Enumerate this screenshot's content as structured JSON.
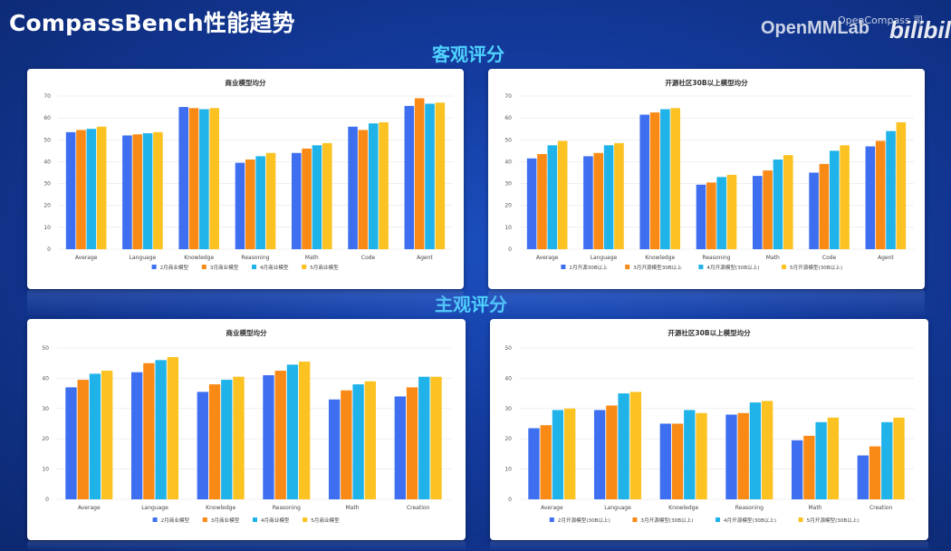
{
  "header": {
    "title": "CompassBench性能趋势",
    "watermark": "OpenMMLab",
    "watermark_small": "OpenCompass 司",
    "bilibili": "bilibili"
  },
  "sections": {
    "objective": "客观评分",
    "subjective": "主观评分"
  },
  "colors": [
    "#3d6ff0",
    "#f98a16",
    "#1fb3ea",
    "#fbc221"
  ],
  "chart_data": [
    {
      "type": "bar",
      "title": "商业模型均分",
      "categories": [
        "Average",
        "Language",
        "Knowledge",
        "Reasoning",
        "Math",
        "Code",
        "Agent"
      ],
      "ylim": [
        0,
        70
      ],
      "yticks": [
        0,
        10,
        20,
        30,
        40,
        50,
        60,
        70
      ],
      "grid": true,
      "legend_position": "bottom",
      "series": [
        {
          "name": "2月商业模型",
          "values": [
            53.5,
            52,
            65,
            39.5,
            44,
            56,
            65.5
          ]
        },
        {
          "name": "3月商业模型",
          "values": [
            54.5,
            52.5,
            64.5,
            41,
            46,
            54.5,
            69
          ]
        },
        {
          "name": "4月商业模型",
          "values": [
            55,
            53,
            64,
            42.5,
            47.5,
            57.5,
            66.5
          ]
        },
        {
          "name": "5月商业模型",
          "values": [
            56,
            53.5,
            64.5,
            44,
            48.5,
            58,
            67
          ]
        }
      ]
    },
    {
      "type": "bar",
      "title": "开源社区30B以上模型均分",
      "categories": [
        "Average",
        "Language",
        "Knowledge",
        "Reasoning",
        "Math",
        "Code",
        "Agent"
      ],
      "ylim": [
        0,
        70
      ],
      "yticks": [
        0,
        10,
        20,
        30,
        40,
        50,
        60,
        70
      ],
      "grid": true,
      "legend_position": "bottom",
      "series": [
        {
          "name": "2月开源30B以上",
          "values": [
            41.5,
            42.5,
            61.5,
            29.5,
            33.5,
            35,
            47
          ]
        },
        {
          "name": "3月开源模型30B以上",
          "values": [
            43.5,
            44,
            62.5,
            30.5,
            36,
            39,
            49.5
          ]
        },
        {
          "name": "4月开源模型(30B以上)",
          "values": [
            47.5,
            47.5,
            64,
            33,
            41,
            45,
            54
          ]
        },
        {
          "name": "5月开源模型(30B以上)",
          "values": [
            49.5,
            48.5,
            64.5,
            34,
            43,
            47.5,
            58
          ]
        }
      ]
    },
    {
      "type": "bar",
      "title": "商业模型均分",
      "categories": [
        "Average",
        "Language",
        "Knowledge",
        "Reasoning",
        "Math",
        "Creation"
      ],
      "ylim": [
        0,
        50
      ],
      "yticks": [
        0,
        10,
        20,
        30,
        40,
        50
      ],
      "grid": true,
      "legend_position": "bottom",
      "series": [
        {
          "name": "2月商业模型",
          "values": [
            37,
            42,
            35.5,
            41,
            33,
            34
          ]
        },
        {
          "name": "3月商业模型",
          "values": [
            39.5,
            45,
            38,
            42.5,
            36,
            37
          ]
        },
        {
          "name": "4月商业模型",
          "values": [
            41.5,
            46,
            39.5,
            44.5,
            38,
            40.5
          ]
        },
        {
          "name": "5月商业模型",
          "values": [
            42.5,
            47,
            40.5,
            45.5,
            39,
            40.5
          ]
        }
      ]
    },
    {
      "type": "bar",
      "title": "开源社区30B以上模型均分",
      "categories": [
        "Average",
        "Language",
        "Knowledge",
        "Reasoning",
        "Math",
        "Creation"
      ],
      "ylim": [
        0,
        50
      ],
      "yticks": [
        0,
        10,
        20,
        30,
        40,
        50
      ],
      "grid": true,
      "legend_position": "bottom",
      "series": [
        {
          "name": "2月开源模型(30B以上)",
          "values": [
            23.5,
            29.5,
            25,
            28,
            19.5,
            14.5
          ]
        },
        {
          "name": "3月开源模型(30B以上)",
          "values": [
            24.5,
            31,
            25,
            28.5,
            21,
            17.5
          ]
        },
        {
          "name": "4月开源模型(30B以上)",
          "values": [
            29.5,
            35,
            29.5,
            32,
            25.5,
            25.5
          ]
        },
        {
          "name": "5月开源模型(30B以上)",
          "values": [
            30,
            35.5,
            28.5,
            32.5,
            27,
            27
          ]
        }
      ]
    }
  ]
}
